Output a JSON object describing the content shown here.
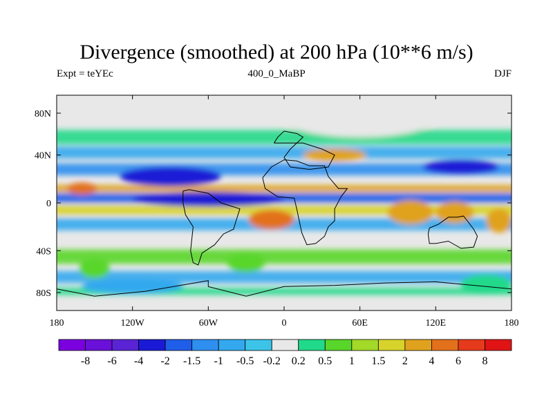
{
  "chart_data": {
    "type": "heatmap",
    "title": "Divergence (smoothed) at 200 hPa (10**6 m/s)",
    "subtitle_left": "Expt = teYEc",
    "subtitle_center": "400_0_MaBP",
    "subtitle_right": "DJF",
    "x_ticks": [
      "180",
      "120W",
      "60W",
      "0",
      "60E",
      "120E",
      "180"
    ],
    "y_ticks": [
      "80N",
      "40N",
      "0",
      "40S",
      "80S"
    ],
    "xlim": [
      -180,
      180
    ],
    "ylim": [
      -90,
      90
    ],
    "colorbar": {
      "colors": [
        "#7b00e0",
        "#6a10d8",
        "#5a24d4",
        "#1a1ad6",
        "#1f5ee8",
        "#2f8ff0",
        "#33a8ee",
        "#3cc3e8",
        "#e8e8e8",
        "#21d98a",
        "#59d62a",
        "#a3d928",
        "#d7d32a",
        "#e0a21e",
        "#e3711c",
        "#e63a1c",
        "#e01414"
      ],
      "labels": [
        "-8",
        "-6",
        "-4",
        "-2",
        "-1.5",
        "-1",
        "-0.5",
        "-0.2",
        "0.2",
        "0.5",
        "1",
        "1.5",
        "2",
        "4",
        "6",
        "8"
      ]
    },
    "zonal_bands": [
      {
        "lat": 55,
        "height": 12,
        "color": "#21d98a"
      },
      {
        "lat": 42,
        "height": 10,
        "color": "#33a8ee"
      },
      {
        "lat": 28,
        "height": 10,
        "color": "#2f8ff0"
      },
      {
        "lat": 12,
        "height": 6,
        "color": "#e0a21e"
      },
      {
        "lat": 4,
        "height": 8,
        "color": "#1f5ee8"
      },
      {
        "lat": -6,
        "height": 8,
        "color": "#d7d32a"
      },
      {
        "lat": -18,
        "height": 10,
        "color": "#33a8ee"
      },
      {
        "lat": -45,
        "height": 12,
        "color": "#59d62a"
      },
      {
        "lat": -62,
        "height": 10,
        "color": "#33a8ee"
      },
      {
        "lat": -74,
        "height": 6,
        "color": "#21d98a"
      }
    ],
    "blobs": [
      {
        "lon": -90,
        "lat": 22,
        "rlon": 40,
        "rlat": 8,
        "color": "#1a1ad6"
      },
      {
        "lon": -60,
        "lat": 3,
        "rlon": 60,
        "rlat": 6,
        "color": "#1a1ad6"
      },
      {
        "lon": 140,
        "lat": 30,
        "rlon": 30,
        "rlat": 6,
        "color": "#1a1ad6"
      },
      {
        "lon": -10,
        "lat": -14,
        "rlon": 18,
        "rlat": 8,
        "color": "#e3711c"
      },
      {
        "lon": 100,
        "lat": -8,
        "rlon": 18,
        "rlat": 10,
        "color": "#e0a21e"
      },
      {
        "lon": 135,
        "lat": -8,
        "rlon": 15,
        "rlat": 9,
        "color": "#e0a21e"
      },
      {
        "lon": 170,
        "lat": -15,
        "rlon": 10,
        "rlat": 10,
        "color": "#e0a21e"
      },
      {
        "lon": -160,
        "lat": 12,
        "rlon": 12,
        "rlat": 5,
        "color": "#e3711c"
      },
      {
        "lon": -150,
        "lat": -55,
        "rlon": 12,
        "rlat": 8,
        "color": "#59d62a"
      },
      {
        "lon": -30,
        "lat": -50,
        "rlon": 15,
        "rlat": 8,
        "color": "#59d62a"
      },
      {
        "lon": 160,
        "lat": -68,
        "rlon": 20,
        "rlat": 8,
        "color": "#21d98a"
      },
      {
        "lon": 40,
        "lat": 40,
        "rlon": 25,
        "rlat": 5,
        "color": "#e0a21e"
      },
      {
        "lon": -120,
        "lat": -70,
        "rlon": 40,
        "rlat": 6,
        "color": "#33a8ee"
      },
      {
        "lon": 60,
        "lat": 70,
        "rlon": 60,
        "rlat": 15,
        "color": "#e8e8e8"
      }
    ],
    "coastlines": [
      [
        [
          -8,
          50
        ],
        [
          -5,
          55
        ],
        [
          0,
          60
        ],
        [
          10,
          58
        ],
        [
          15,
          55
        ],
        [
          5,
          45
        ],
        [
          0,
          38
        ],
        [
          5,
          30
        ],
        [
          20,
          28
        ],
        [
          35,
          30
        ],
        [
          40,
          40
        ],
        [
          30,
          45
        ],
        [
          15,
          50
        ],
        [
          -8,
          50
        ]
      ],
      [
        [
          -17,
          21
        ],
        [
          -15,
          12
        ],
        [
          -5,
          5
        ],
        [
          8,
          4
        ],
        [
          10,
          -5
        ],
        [
          12,
          -15
        ],
        [
          14,
          -25
        ],
        [
          18,
          -35
        ],
        [
          25,
          -34
        ],
        [
          32,
          -28
        ],
        [
          35,
          -20
        ],
        [
          40,
          -15
        ],
        [
          40,
          -5
        ],
        [
          45,
          5
        ],
        [
          50,
          12
        ],
        [
          43,
          12
        ],
        [
          35,
          22
        ],
        [
          32,
          31
        ],
        [
          20,
          31
        ],
        [
          10,
          35
        ],
        [
          0,
          36
        ],
        [
          -10,
          30
        ],
        [
          -17,
          21
        ]
      ],
      [
        [
          -80,
          10
        ],
        [
          -75,
          11
        ],
        [
          -60,
          8
        ],
        [
          -50,
          0
        ],
        [
          -35,
          -5
        ],
        [
          -38,
          -15
        ],
        [
          -40,
          -22
        ],
        [
          -48,
          -26
        ],
        [
          -55,
          -35
        ],
        [
          -65,
          -42
        ],
        [
          -68,
          -52
        ],
        [
          -72,
          -50
        ],
        [
          -74,
          -40
        ],
        [
          -72,
          -20
        ],
        [
          -78,
          -10
        ],
        [
          -80,
          0
        ],
        [
          -80,
          10
        ]
      ],
      [
        [
          115,
          -21
        ],
        [
          122,
          -18
        ],
        [
          130,
          -12
        ],
        [
          137,
          -12
        ],
        [
          142,
          -11
        ],
        [
          145,
          -15
        ],
        [
          150,
          -22
        ],
        [
          153,
          -28
        ],
        [
          150,
          -37
        ],
        [
          140,
          -38
        ],
        [
          130,
          -32
        ],
        [
          120,
          -34
        ],
        [
          115,
          -34
        ],
        [
          114,
          -26
        ],
        [
          115,
          -21
        ]
      ],
      [
        [
          -180,
          -72
        ],
        [
          -150,
          -78
        ],
        [
          -110,
          -74
        ],
        [
          -60,
          -65
        ],
        [
          -60,
          -70
        ],
        [
          -30,
          -78
        ],
        [
          0,
          -70
        ],
        [
          40,
          -69
        ],
        [
          80,
          -67
        ],
        [
          120,
          -66
        ],
        [
          160,
          -70
        ],
        [
          180,
          -72
        ]
      ]
    ]
  }
}
